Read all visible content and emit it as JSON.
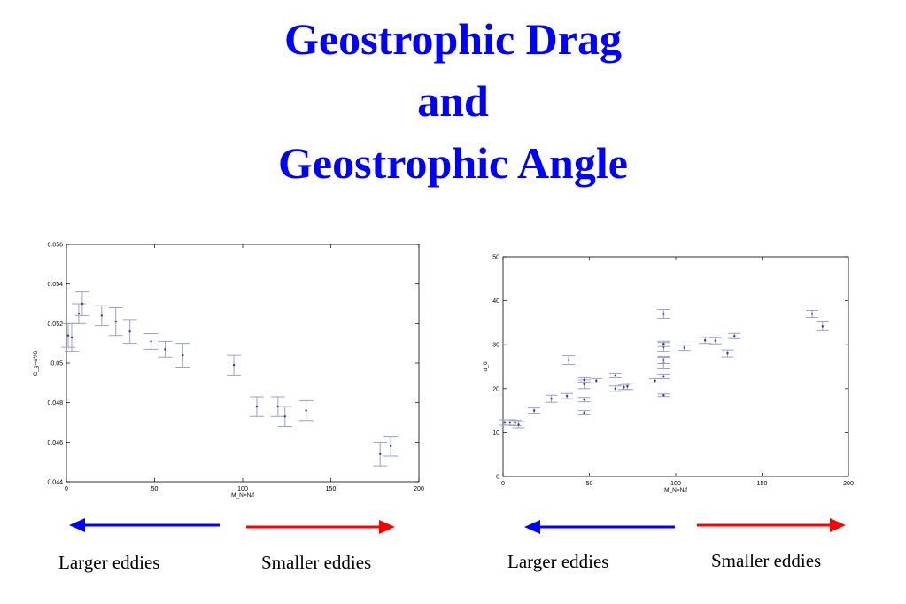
{
  "slide": {
    "title_lines": [
      "Geostrophic Drag",
      "and",
      "Geostrophic Angle"
    ],
    "title_color": "#0000ff"
  },
  "captions": {
    "left_larger": "Larger eddies",
    "left_smaller": "Smaller eddies",
    "right_larger": "Larger eddies",
    "right_smaller": "Smaller eddies"
  },
  "arrows": {
    "larger_color": "#0000ff",
    "smaller_color": "#ff0000",
    "larger_direction": "left",
    "smaller_direction": "right"
  },
  "chart_data": [
    {
      "type": "scatter",
      "error_bars": true,
      "title": "",
      "xlabel": "M_N=N/f",
      "ylabel": "C_g=u*/G",
      "xlim": [
        0,
        200
      ],
      "ylim": [
        0.044,
        0.056
      ],
      "xticks": [
        0,
        50,
        100,
        150,
        200
      ],
      "yticks": [
        0.044,
        0.046,
        0.048,
        0.05,
        0.052,
        0.054,
        0.056
      ],
      "ytick_labels": [
        "0.044",
        "0.046",
        "0.048",
        "0.05",
        "0.052",
        "0.054",
        "0.056"
      ],
      "marker_color": "#2a3a9a",
      "errorbar_color": "#9aa0cc",
      "grid": false,
      "points": [
        {
          "x": 1,
          "y": 0.0514,
          "err": 0.0006
        },
        {
          "x": 3,
          "y": 0.0513,
          "err": 0.0007
        },
        {
          "x": 7,
          "y": 0.0525,
          "err": 0.0005
        },
        {
          "x": 9,
          "y": 0.053,
          "err": 0.0006
        },
        {
          "x": 20,
          "y": 0.0524,
          "err": 0.0005
        },
        {
          "x": 28,
          "y": 0.0521,
          "err": 0.0007
        },
        {
          "x": 36,
          "y": 0.0516,
          "err": 0.0006
        },
        {
          "x": 48,
          "y": 0.0511,
          "err": 0.0004
        },
        {
          "x": 56,
          "y": 0.0507,
          "err": 0.0004
        },
        {
          "x": 66,
          "y": 0.0504,
          "err": 0.0006
        },
        {
          "x": 95,
          "y": 0.0499,
          "err": 0.0005
        },
        {
          "x": 108,
          "y": 0.0478,
          "err": 0.0005
        },
        {
          "x": 120,
          "y": 0.0478,
          "err": 0.0005
        },
        {
          "x": 124,
          "y": 0.0473,
          "err": 0.0005
        },
        {
          "x": 136,
          "y": 0.0476,
          "err": 0.0005
        },
        {
          "x": 178,
          "y": 0.0454,
          "err": 0.0006
        },
        {
          "x": 184,
          "y": 0.0458,
          "err": 0.0005
        }
      ]
    },
    {
      "type": "scatter",
      "error_bars": true,
      "title": "",
      "xlabel": "M_N=N/f",
      "ylabel": "α_0",
      "xlim": [
        0,
        200
      ],
      "ylim": [
        0,
        50
      ],
      "xticks": [
        0,
        50,
        100,
        150,
        200
      ],
      "yticks": [
        0,
        10,
        20,
        30,
        40,
        50
      ],
      "ytick_labels": [
        "0",
        "10",
        "20",
        "30",
        "40",
        "50"
      ],
      "marker_color": "#2a3a9a",
      "errorbar_color": "#9aa0cc",
      "grid": false,
      "points": [
        {
          "x": 1,
          "y": 12.3,
          "err": 0.6
        },
        {
          "x": 4,
          "y": 12.3,
          "err": 0.6
        },
        {
          "x": 7,
          "y": 12.2,
          "err": 0.6
        },
        {
          "x": 9,
          "y": 11.8,
          "err": 0.7
        },
        {
          "x": 18,
          "y": 15.0,
          "err": 0.6
        },
        {
          "x": 28,
          "y": 17.7,
          "err": 0.8
        },
        {
          "x": 37,
          "y": 18.3,
          "err": 0.6
        },
        {
          "x": 38,
          "y": 26.5,
          "err": 1.0
        },
        {
          "x": 47,
          "y": 14.5,
          "err": 0.5
        },
        {
          "x": 47,
          "y": 17.5,
          "err": 0.5
        },
        {
          "x": 47,
          "y": 21.0,
          "err": 1.0
        },
        {
          "x": 47,
          "y": 22.0,
          "err": 0.5
        },
        {
          "x": 54,
          "y": 21.8,
          "err": 0.5
        },
        {
          "x": 65,
          "y": 20.0,
          "err": 0.6
        },
        {
          "x": 65,
          "y": 23.0,
          "err": 0.5
        },
        {
          "x": 70,
          "y": 20.3,
          "err": 0.5
        },
        {
          "x": 72,
          "y": 20.5,
          "err": 0.7
        },
        {
          "x": 88,
          "y": 21.8,
          "err": 0.5
        },
        {
          "x": 93,
          "y": 18.5,
          "err": 0.3
        },
        {
          "x": 93,
          "y": 22.8,
          "err": 0.5
        },
        {
          "x": 93,
          "y": 25.8,
          "err": 1.3
        },
        {
          "x": 93,
          "y": 26.5,
          "err": 0.8
        },
        {
          "x": 93,
          "y": 29.5,
          "err": 1.0
        },
        {
          "x": 93,
          "y": 30.2,
          "err": 0.6
        },
        {
          "x": 93,
          "y": 37.0,
          "err": 1.0
        },
        {
          "x": 105,
          "y": 29.3,
          "err": 0.6
        },
        {
          "x": 117,
          "y": 31.0,
          "err": 0.7
        },
        {
          "x": 123,
          "y": 30.9,
          "err": 0.7
        },
        {
          "x": 130,
          "y": 28.0,
          "err": 0.8
        },
        {
          "x": 134,
          "y": 32.0,
          "err": 0.6
        },
        {
          "x": 179,
          "y": 37.0,
          "err": 0.8
        },
        {
          "x": 185,
          "y": 34.2,
          "err": 1.0
        }
      ]
    }
  ]
}
